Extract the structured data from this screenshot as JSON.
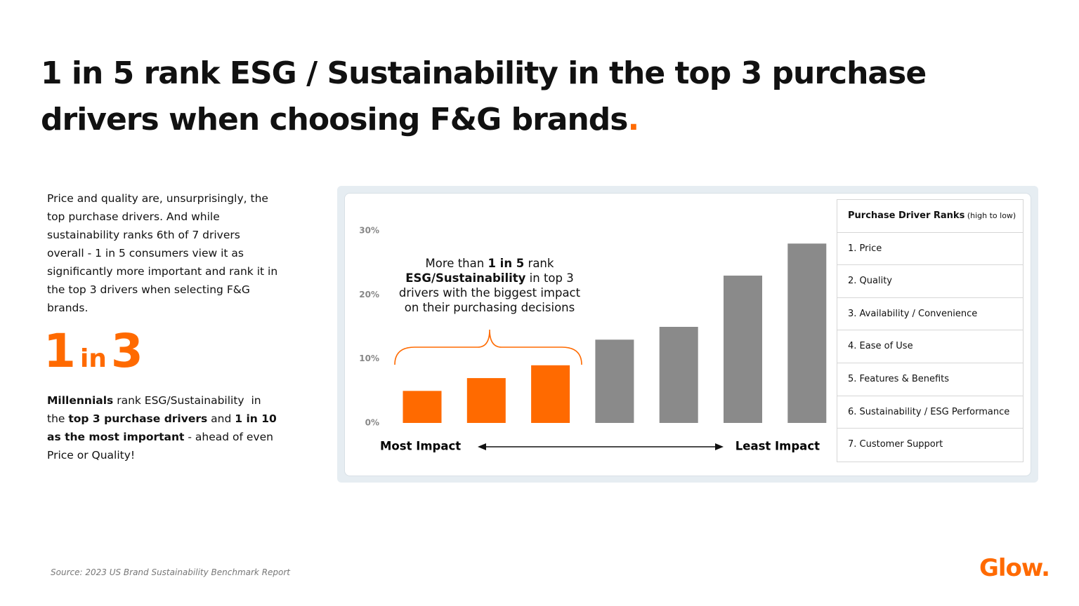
{
  "title": "1 in 5 rank ESG / Sustainability in the top 3 purchase drivers when choosing F&G brands",
  "title_dot": ".",
  "intro": "Price and quality are, unsurprisingly, the top purchase drivers. And while sustainability ranks 6th of 7 drivers overall - 1 in 5 consumers view it as significantly more important and rank it in the top 3 drivers when selecting F&G brands.",
  "stat": {
    "big_1": "1",
    "small": "in",
    "big_2": "3"
  },
  "stat_text": [
    {
      "text": "Millennials",
      "bold": true
    },
    {
      "text": " rank ESG/Sustainability  in the ",
      "bold": false
    },
    {
      "text": "top 3 purchase drivers",
      "bold": true
    },
    {
      "text": " and ",
      "bold": false
    },
    {
      "text": "1 in 10 as the most important",
      "bold": true
    },
    {
      "text": " - ahead of even Price or Quality!",
      "bold": false
    }
  ],
  "ranks_table": {
    "header": [
      {
        "text": "Purchase Driver Ranks",
        "bold": true
      },
      {
        "text": " (high to low)",
        "bold": false
      }
    ],
    "rows": [
      "1. Price",
      "2. Quality",
      "3. Availability / Convenience",
      "4. Ease of Use",
      "5. Features & Benefits",
      "6. Sustainability / ESG Performance",
      "7. Customer Support"
    ]
  },
  "source": "Source: 2023 US Brand Sustainability Benchmark Report",
  "logo": "Glow.",
  "chart_data": {
    "type": "bar",
    "categories": [
      null,
      null,
      null,
      null,
      null,
      null,
      null
    ],
    "values": [
      5,
      7,
      9,
      13,
      15,
      23,
      28
    ],
    "colors": [
      "#ff6a00",
      "#ff6a00",
      "#ff6a00",
      "#8a8a8a",
      "#8a8a8a",
      "#8a8a8a",
      "#8a8a8a"
    ],
    "ylim": [
      0,
      30
    ],
    "yticks": [
      {
        "value": 0,
        "label": "0%"
      },
      {
        "value": 10,
        "label": "10%"
      },
      {
        "value": 20,
        "label": "20%"
      },
      {
        "value": 30,
        "label": "30%"
      }
    ],
    "grid": false,
    "annotation": [
      [
        {
          "text": "More than ",
          "bold": false
        },
        {
          "text": "1 in 5",
          "bold": true
        },
        {
          "text": " rank",
          "bold": false
        }
      ],
      [
        {
          "text": "ESG/Sustainability",
          "bold": true
        },
        {
          "text": " in top 3",
          "bold": false
        }
      ],
      [
        {
          "text": "drivers with the biggest impact",
          "bold": false
        }
      ],
      [
        {
          "text": "on their purchasing decisions",
          "bold": false
        }
      ]
    ],
    "x_label_left": "Most Impact",
    "x_label_right": "Least Impact"
  }
}
